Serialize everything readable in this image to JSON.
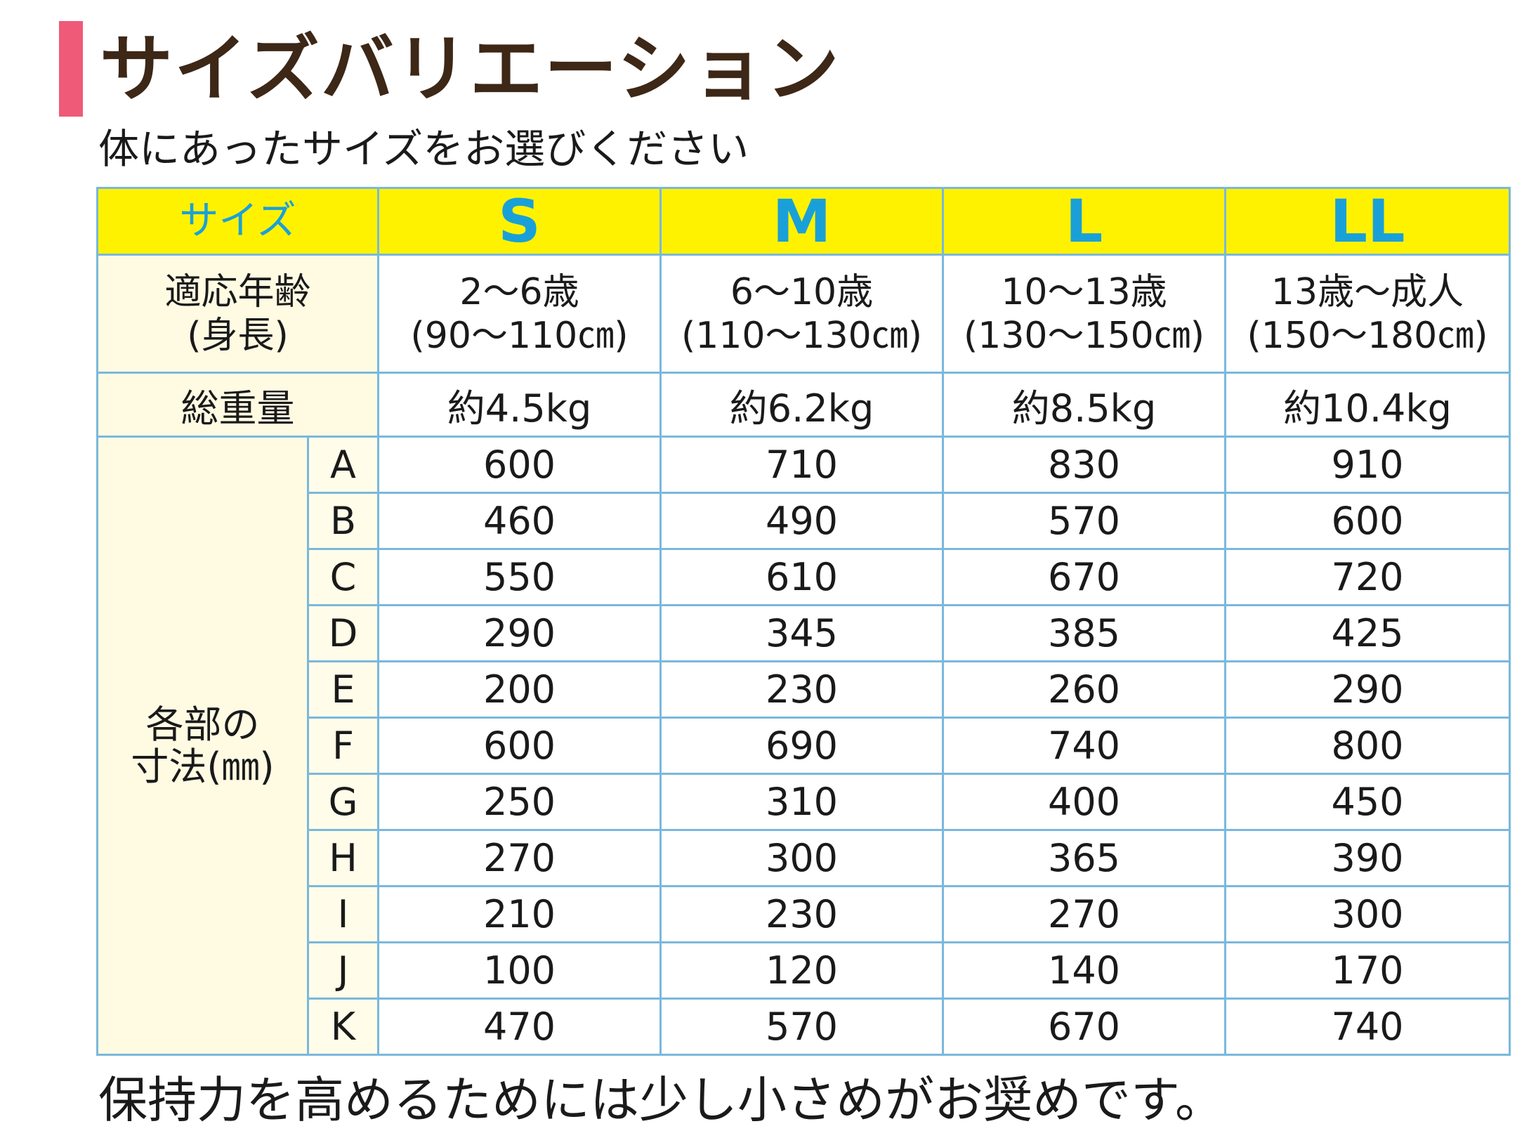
{
  "title": "サイズバリエーション",
  "subtitle": "体にあったサイズをお選びください",
  "footer_note": "保持力を高めるためには少し小さめがお奨めです。",
  "colors": {
    "accent": "#ef5a78",
    "title_text": "#3d2716",
    "header_bg": "#fff200",
    "header_text": "#1aa0d8",
    "label_bg": "#fffbe3",
    "letter_bg": "#fffde9",
    "border": "#7ab8dc"
  },
  "table": {
    "size_label": "サイズ",
    "sizes": [
      "S",
      "M",
      "L",
      "LL"
    ],
    "age_label": {
      "line1": "適応年齢",
      "line2": "(身長)"
    },
    "ages": [
      {
        "line1": "2〜6歳",
        "line2": "(90〜110㎝)"
      },
      {
        "line1": "6〜10歳",
        "line2": "(110〜130㎝)"
      },
      {
        "line1": "10〜13歳",
        "line2": "(130〜150㎝)"
      },
      {
        "line1": "13歳〜成人",
        "line2": "(150〜180㎝)"
      }
    ],
    "weight_label": "総重量",
    "weights": [
      "約4.5kg",
      "約6.2kg",
      "約8.5kg",
      "約10.4kg"
    ],
    "dimension_label": {
      "line1": "各部の",
      "line2": "寸法(㎜)"
    },
    "dimensions": [
      {
        "part": "A",
        "values": [
          "600",
          "710",
          "830",
          "910"
        ]
      },
      {
        "part": "B",
        "values": [
          "460",
          "490",
          "570",
          "600"
        ]
      },
      {
        "part": "C",
        "values": [
          "550",
          "610",
          "670",
          "720"
        ]
      },
      {
        "part": "D",
        "values": [
          "290",
          "345",
          "385",
          "425"
        ]
      },
      {
        "part": "E",
        "values": [
          "200",
          "230",
          "260",
          "290"
        ]
      },
      {
        "part": "F",
        "values": [
          "600",
          "690",
          "740",
          "800"
        ]
      },
      {
        "part": "G",
        "values": [
          "250",
          "310",
          "400",
          "450"
        ]
      },
      {
        "part": "H",
        "values": [
          "270",
          "300",
          "365",
          "390"
        ]
      },
      {
        "part": "I",
        "values": [
          "210",
          "230",
          "270",
          "300"
        ]
      },
      {
        "part": "J",
        "values": [
          "100",
          "120",
          "140",
          "170"
        ]
      },
      {
        "part": "K",
        "values": [
          "470",
          "570",
          "670",
          "740"
        ]
      }
    ]
  }
}
